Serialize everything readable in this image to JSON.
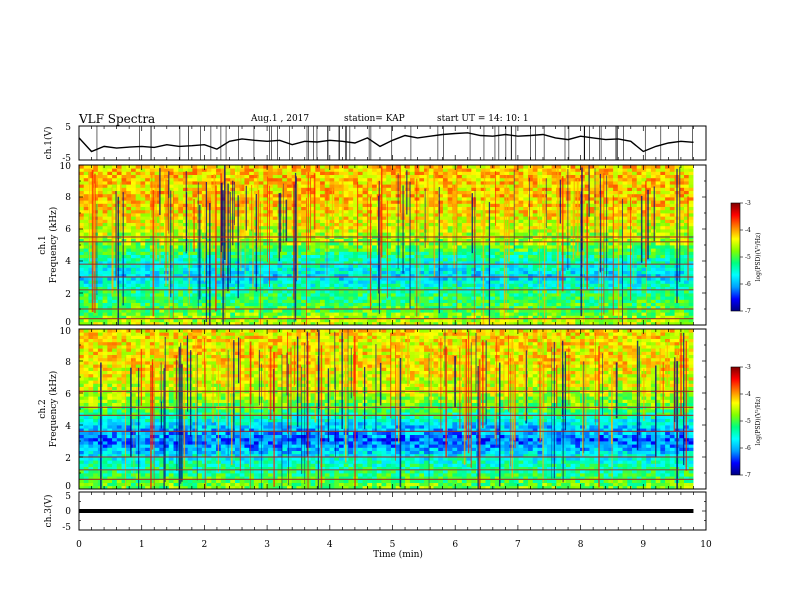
{
  "header": {
    "title": "VLF Spectra",
    "date": "Aug.1  , 2017",
    "station": "station= KAP",
    "start_ut": "start  UT  =   14: 10: 1"
  },
  "colorscale": {
    "stops": [
      "#000080",
      "#0000ff",
      "#00a0ff",
      "#00ffff",
      "#00ff80",
      "#80ff00",
      "#ffff00",
      "#ff8000",
      "#ff0000",
      "#800000"
    ],
    "label": "log(PSD)(V²/Hz)",
    "ticks": [
      "-3",
      "-4",
      "-5",
      "-6",
      "-7"
    ]
  },
  "chart_data": [
    {
      "type": "line",
      "ylabel": "ch.1(V)",
      "ylim": [
        -5,
        5
      ],
      "ytick_labels": [
        "5",
        "-5"
      ],
      "xlim": [
        0,
        10
      ],
      "x": [
        0,
        0.2,
        0.4,
        0.6,
        0.8,
        1.0,
        1.2,
        1.4,
        1.6,
        1.8,
        2.0,
        2.2,
        2.4,
        2.6,
        2.8,
        3.0,
        3.2,
        3.4,
        3.6,
        3.8,
        4.0,
        4.2,
        4.4,
        4.6,
        4.8,
        5.0,
        5.2,
        5.4,
        5.6,
        5.8,
        6.0,
        6.2,
        6.4,
        6.6,
        6.8,
        7.0,
        7.2,
        7.4,
        7.6,
        7.8,
        8.0,
        8.2,
        8.4,
        8.6,
        8.8,
        9.0,
        9.2,
        9.4,
        9.6,
        9.8
      ],
      "y": [
        1.5,
        -2.5,
        -1.0,
        -1.5,
        -1.2,
        -1.0,
        -1.3,
        -0.5,
        -1.0,
        -0.8,
        -0.5,
        -1.8,
        0.5,
        1.2,
        0.8,
        0.5,
        0.8,
        -0.5,
        0.5,
        0.3,
        0.8,
        0.5,
        0.0,
        1.5,
        -1.0,
        0.8,
        2.2,
        1.5,
        2.0,
        2.5,
        2.8,
        3.0,
        2.2,
        2.0,
        2.5,
        2.0,
        2.2,
        2.5,
        1.5,
        1.0,
        2.0,
        1.5,
        1.0,
        1.2,
        0.5,
        -2.5,
        -1.0,
        0.0,
        0.5,
        0.2
      ]
    },
    {
      "type": "heatmap",
      "ylabel": "Frequency (kHz)",
      "channel_label": "ch.1",
      "ylim": [
        0,
        10
      ],
      "ytick_labels": [
        "0",
        "2",
        "4",
        "6",
        "8",
        "10"
      ],
      "xlim": [
        0,
        9.8
      ],
      "zlim": [
        -7,
        -3
      ],
      "zlabel": "log(PSD)(V²/Hz)",
      "bands_khz": [
        0.4,
        1.0,
        2.2,
        3.0,
        3.8,
        5.2,
        5.5
      ],
      "note_profile": {
        "freq_khz": [
          0,
          1,
          2,
          3,
          4,
          5,
          6,
          7,
          8,
          9,
          10
        ],
        "level": [
          -4.5,
          -5.0,
          -5.2,
          -5.8,
          -5.5,
          -4.8,
          -4.5,
          -4.3,
          -4.2,
          -4.2,
          -4.2
        ]
      }
    },
    {
      "type": "heatmap",
      "ylabel": "Frequency (kHz)",
      "channel_label": "ch.2",
      "ylim": [
        0,
        10
      ],
      "ytick_labels": [
        "0",
        "2",
        "4",
        "6",
        "8",
        "10"
      ],
      "xlim": [
        0,
        9.8
      ],
      "zlim": [
        -7,
        -3
      ],
      "zlabel": "log(PSD)(V²/Hz)",
      "bands_khz": [
        0.6,
        1.2,
        2.0,
        3.6,
        4.6,
        5.1,
        6.1
      ],
      "note_profile": {
        "freq_khz": [
          0,
          1,
          2,
          3,
          4,
          5,
          6,
          7,
          8,
          9,
          10
        ],
        "level": [
          -4.8,
          -5.2,
          -5.6,
          -6.3,
          -5.8,
          -5.0,
          -4.6,
          -4.4,
          -4.3,
          -4.3,
          -4.3
        ]
      }
    },
    {
      "type": "line",
      "ylabel": "ch.3(V)",
      "ylim": [
        -5,
        5
      ],
      "ytick_labels": [
        "5",
        "0",
        "-5"
      ],
      "xlim": [
        0,
        10
      ],
      "x": [
        0,
        9.8
      ],
      "y": [
        0,
        0
      ]
    }
  ],
  "xaxis": {
    "label": "Time (min)",
    "tick_labels": [
      "0",
      "1",
      "2",
      "3",
      "4",
      "5",
      "6",
      "7",
      "8",
      "9",
      "10"
    ],
    "range": [
      0,
      10
    ]
  }
}
